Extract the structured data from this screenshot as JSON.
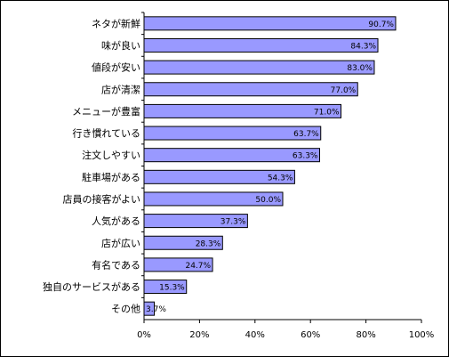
{
  "chart_data": {
    "type": "bar",
    "orientation": "horizontal",
    "title": "",
    "xlabel": "",
    "ylabel": "",
    "categories": [
      "ネタが新鮮",
      "味が良い",
      "値段が安い",
      "店が清潔",
      "メニューが豊富",
      "行き慣れている",
      "注文しやすい",
      "駐車場がある",
      "店員の接客がよい",
      "人気がある",
      "店が広い",
      "有名である",
      "独自のサービスがある",
      "その他"
    ],
    "values": [
      90.7,
      84.3,
      83.0,
      77.0,
      71.0,
      63.7,
      63.3,
      54.3,
      50.0,
      37.3,
      28.3,
      24.7,
      15.3,
      3.7
    ],
    "data_labels": [
      "90.7%",
      "84.3%",
      "83.0%",
      "77.0%",
      "71.0%",
      "63.7%",
      "63.3%",
      "54.3%",
      "50.0%",
      "37.3%",
      "28.3%",
      "24.7%",
      "15.3%",
      "3.7%"
    ],
    "xlim": [
      0,
      100
    ],
    "x_ticks": [
      0,
      20,
      40,
      60,
      80,
      100
    ],
    "x_tick_labels": [
      "0%",
      "20%",
      "40%",
      "60%",
      "80%",
      "100%"
    ],
    "grid": false,
    "legend": "none",
    "bar_color": "#9999ff",
    "bar_border_color": "#000000"
  }
}
